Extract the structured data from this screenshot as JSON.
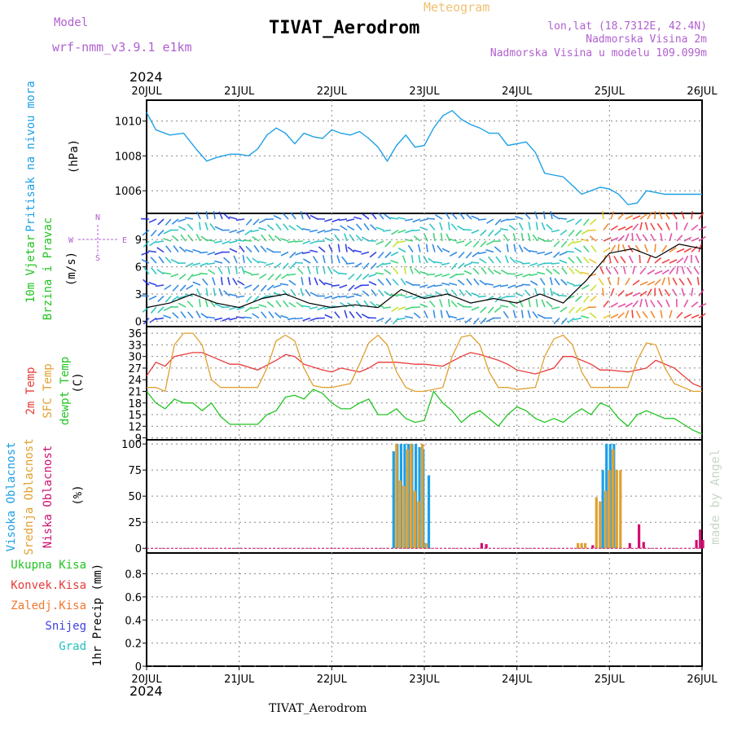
{
  "header": {
    "model_label": "Model",
    "model_version": "wrf-nmm_v3.9.1  e1km",
    "product": "Meteogram",
    "station": "TIVAT_Aerodrom",
    "lonlat": "lon,lat (18.7312E, 42.4N)",
    "altitude": "Nadmorska Visina 2m",
    "model_altitude": "Nadmorska Visina u modelu 109.099m",
    "year_top": "2024",
    "year_bottom": "2024",
    "footer_station": "TIVAT_Aerodrom",
    "credit": "made by Angel"
  },
  "colors": {
    "pressure": "#1ea0e6",
    "temp2m": "#e83a3a",
    "sfc_temp": "#e0a030",
    "dewpoint": "#22c422",
    "high_cloud": "#1ea0e6",
    "mid_cloud": "#e0a030",
    "low_cloud": "#d01070",
    "model_color": "#b060d0"
  },
  "panels": {
    "pressure": {
      "label1": "Pritisak na nivou mora",
      "unit": "(hPa)"
    },
    "wind": {
      "label1": "10m Vjetar",
      "label2": "Brzina i Pravac",
      "unit": "(m/s)",
      "compass": {
        "n": "N",
        "s": "S",
        "w": "W",
        "e": "E"
      }
    },
    "temp": {
      "label1": "2m Temp",
      "label2": "SFC Temp",
      "label3": "dewpt Temp",
      "unit": "(C)"
    },
    "cloud": {
      "label1": "Visoka Oblacnost",
      "label2": "Srednja Oblacnost",
      "label3": "Niska Oblacnost",
      "unit": "(%)"
    },
    "precip": {
      "legend": [
        "Ukupna Kisa",
        "Konvek.Kisa",
        "Zaledj.Kisa",
        "Snijeg",
        "Grad"
      ],
      "legend_colors": [
        "#22c422",
        "#e83a3a",
        "#f07830",
        "#4040e0",
        "#20c0c0"
      ],
      "unit": "1hr Precip (mm)"
    }
  },
  "chart_data": [
    {
      "type": "line",
      "title": "Pritisak na nivou mora",
      "ylabel": "(hPa)",
      "x_ticks": [
        "20JUL",
        "21JUL",
        "22JUL",
        "23JUL",
        "24JUL",
        "25JUL",
        "26JUL"
      ],
      "ylim": [
        1004.7,
        1011.2
      ],
      "yticks": [
        1006,
        1008,
        1010
      ],
      "series": [
        {
          "name": "Pritisak na nivou mora",
          "x": [
            0,
            0.1,
            0.25,
            0.4,
            0.55,
            0.65,
            0.75,
            0.9,
            1.0,
            1.1,
            1.2,
            1.3,
            1.4,
            1.5,
            1.6,
            1.7,
            1.8,
            1.9,
            2.0,
            2.1,
            2.2,
            2.3,
            2.4,
            2.5,
            2.6,
            2.7,
            2.8,
            2.9,
            3.0,
            3.1,
            3.2,
            3.3,
            3.4,
            3.5,
            3.6,
            3.7,
            3.8,
            3.9,
            4.0,
            4.1,
            4.2,
            4.3,
            4.4,
            4.5,
            4.6,
            4.7,
            4.8,
            4.9,
            5.0,
            5.1,
            5.2,
            5.3,
            5.4,
            5.5,
            5.6,
            5.7,
            5.8,
            5.9,
            6.0
          ],
          "y": [
            1010.5,
            1009.5,
            1009.2,
            1009.3,
            1008.3,
            1007.7,
            1007.9,
            1008.1,
            1008.1,
            1008.0,
            1008.4,
            1009.2,
            1009.6,
            1009.3,
            1008.7,
            1009.3,
            1009.1,
            1009.0,
            1009.5,
            1009.3,
            1009.2,
            1009.4,
            1009.0,
            1008.5,
            1007.7,
            1008.6,
            1009.2,
            1008.5,
            1008.6,
            1009.6,
            1010.3,
            1010.6,
            1010.1,
            1009.8,
            1009.6,
            1009.3,
            1009.3,
            1008.6,
            1008.7,
            1008.8,
            1008.2,
            1007.0,
            1006.9,
            1006.8,
            1006.3,
            1005.8,
            1006.0,
            1006.2,
            1006.1,
            1005.8,
            1005.2,
            1005.3,
            1006.0,
            1005.9,
            1005.8,
            1005.8,
            1005.8,
            1005.8,
            1005.8
          ]
        }
      ]
    },
    {
      "type": "line",
      "title": "10m Vjetar Brzina i Pravac",
      "ylabel": "(m/s)",
      "ylim": [
        -0.6,
        11.9
      ],
      "yticks": [
        0,
        3,
        6,
        9
      ],
      "series": [
        {
          "name": "10m Vjetar",
          "x": [
            0,
            0.25,
            0.5,
            0.75,
            1.0,
            1.25,
            1.5,
            1.75,
            2.0,
            2.25,
            2.5,
            2.75,
            3.0,
            3.25,
            3.5,
            3.75,
            4.0,
            4.25,
            4.5,
            4.75,
            5.0,
            5.25,
            5.5,
            5.75,
            6.0
          ],
          "y": [
            1.5,
            2.0,
            3.0,
            2.0,
            1.5,
            2.5,
            3.0,
            2.0,
            1.5,
            1.8,
            1.5,
            3.5,
            2.5,
            3.0,
            2.0,
            2.5,
            2.0,
            3.0,
            2.0,
            4.5,
            7.5,
            8.0,
            7.0,
            8.5,
            8.0
          ]
        }
      ]
    },
    {
      "type": "line",
      "title": "2m Temp / SFC Temp / dewpt Temp",
      "ylabel": "(C)",
      "ylim": [
        8.5,
        37.7
      ],
      "yticks": [
        9,
        12,
        15,
        18,
        21,
        24,
        27,
        30,
        33,
        36
      ],
      "series": [
        {
          "name": "2m Temp",
          "x": [
            0,
            0.1,
            0.2,
            0.3,
            0.5,
            0.6,
            0.7,
            0.9,
            1.0,
            1.2,
            1.4,
            1.5,
            1.6,
            1.7,
            1.9,
            2.0,
            2.1,
            2.3,
            2.4,
            2.5,
            2.7,
            2.9,
            3.0,
            3.2,
            3.4,
            3.5,
            3.6,
            3.8,
            3.9,
            4.0,
            4.2,
            4.4,
            4.5,
            4.6,
            4.8,
            4.9,
            5.0,
            5.2,
            5.4,
            5.5,
            5.7,
            5.9,
            6.0
          ],
          "y": [
            25,
            28.5,
            27.5,
            30,
            31,
            31,
            30,
            28,
            28,
            26.5,
            29,
            30.5,
            30,
            28,
            26.5,
            26,
            27,
            26,
            27,
            28.5,
            28.5,
            28,
            28,
            27.5,
            30,
            31,
            30.5,
            29,
            28,
            26.5,
            25.5,
            27,
            30,
            30,
            28,
            26.5,
            26.5,
            26,
            27,
            29,
            27,
            23,
            22
          ]
        },
        {
          "name": "SFC Temp",
          "x": [
            0,
            0.1,
            0.2,
            0.3,
            0.4,
            0.5,
            0.6,
            0.7,
            0.8,
            0.9,
            1.0,
            1.2,
            1.3,
            1.4,
            1.5,
            1.6,
            1.7,
            1.8,
            1.9,
            2.0,
            2.2,
            2.3,
            2.4,
            2.5,
            2.6,
            2.7,
            2.8,
            2.9,
            3.0,
            3.2,
            3.3,
            3.4,
            3.5,
            3.6,
            3.7,
            3.8,
            3.9,
            4.0,
            4.2,
            4.3,
            4.4,
            4.5,
            4.6,
            4.7,
            4.8,
            4.9,
            5.0,
            5.2,
            5.3,
            5.4,
            5.5,
            5.6,
            5.7,
            5.8,
            5.9,
            6.0
          ],
          "y": [
            22,
            22,
            21,
            33,
            36,
            36,
            33,
            24,
            22,
            22,
            22,
            22,
            27,
            34,
            35.5,
            34,
            27,
            22.5,
            22,
            22,
            23,
            28,
            33.5,
            35.5,
            33,
            26,
            22,
            21,
            21,
            22,
            30,
            35,
            35.5,
            33,
            26,
            22,
            22,
            21.5,
            22,
            30,
            34.5,
            35.5,
            33,
            26,
            22,
            22,
            22,
            22,
            29,
            33.5,
            33,
            27,
            23,
            22,
            21,
            21
          ]
        },
        {
          "name": "dewpt Temp",
          "x": [
            0,
            0.1,
            0.2,
            0.3,
            0.4,
            0.5,
            0.6,
            0.7,
            0.8,
            0.9,
            1.0,
            1.2,
            1.3,
            1.4,
            1.5,
            1.6,
            1.7,
            1.8,
            1.9,
            2.0,
            2.1,
            2.2,
            2.3,
            2.4,
            2.5,
            2.6,
            2.7,
            2.8,
            2.9,
            3.0,
            3.1,
            3.2,
            3.3,
            3.4,
            3.5,
            3.6,
            3.7,
            3.8,
            3.9,
            4.0,
            4.1,
            4.2,
            4.3,
            4.4,
            4.5,
            4.6,
            4.7,
            4.8,
            4.9,
            5.0,
            5.1,
            5.2,
            5.3,
            5.4,
            5.5,
            5.6,
            5.7,
            5.8,
            5.9,
            6.0
          ],
          "y": [
            21,
            18,
            16.5,
            19,
            18,
            18,
            16,
            18,
            14.5,
            12.5,
            12.5,
            12.5,
            15,
            16,
            19.5,
            20,
            19,
            21.5,
            20.5,
            18,
            16.5,
            16.5,
            18,
            19,
            15,
            15,
            16.5,
            14,
            13,
            13.5,
            21,
            18,
            16,
            13,
            15,
            16,
            14,
            12,
            15,
            17,
            16,
            14,
            13,
            14,
            13,
            15,
            16.5,
            15,
            18,
            17,
            14,
            12,
            15,
            16,
            15,
            14,
            14,
            12.5,
            11,
            10
          ]
        }
      ]
    },
    {
      "type": "bar",
      "title": "Oblacnost",
      "ylabel": "(%)",
      "ylim": [
        -4.5,
        104
      ],
      "yticks": [
        0,
        25,
        50,
        75,
        100
      ],
      "series": [
        {
          "name": "Visoka Oblacnost",
          "x": [
            2.67,
            2.71,
            2.75,
            2.79,
            2.83,
            2.87,
            2.91,
            2.95,
            2.99,
            3.05,
            4.93,
            4.97,
            5.01,
            5.05
          ],
          "y": [
            93,
            100,
            100,
            100,
            100,
            100,
            100,
            97,
            95,
            70,
            75,
            100,
            100,
            100
          ]
        },
        {
          "name": "Srednja Oblacnost",
          "x": [
            2.69,
            2.73,
            2.77,
            2.81,
            2.85,
            2.89,
            2.93,
            2.97,
            3.01,
            4.65,
            4.69,
            4.73,
            4.85,
            4.89,
            4.95,
            4.99,
            5.03,
            5.07,
            5.11
          ],
          "y": [
            100,
            65,
            60,
            95,
            100,
            55,
            45,
            100,
            5,
            5,
            5,
            5,
            49,
            45,
            55,
            75,
            95,
            75,
            75
          ]
        },
        {
          "name": "Niska Oblacnost",
          "x": [
            3.6,
            3.65,
            4.8,
            5.2,
            5.3,
            5.35,
            5.92,
            5.96,
            5.99
          ],
          "y": [
            5,
            4,
            3,
            5,
            23,
            6,
            8,
            18,
            8
          ]
        }
      ]
    },
    {
      "type": "bar",
      "title": "1hr Precip",
      "ylabel": "1hr Precip (mm)",
      "ylim": [
        0,
        0.98
      ],
      "yticks": [
        0,
        0.2,
        0.4,
        0.6,
        0.8
      ],
      "series": [
        {
          "name": "Ukupna Kisa",
          "x": [],
          "y": []
        },
        {
          "name": "Konvek.Kisa",
          "x": [],
          "y": []
        },
        {
          "name": "Zaledj.Kisa",
          "x": [],
          "y": []
        },
        {
          "name": "Snijeg",
          "x": [],
          "y": []
        },
        {
          "name": "Grad",
          "x": [],
          "y": []
        }
      ]
    }
  ]
}
